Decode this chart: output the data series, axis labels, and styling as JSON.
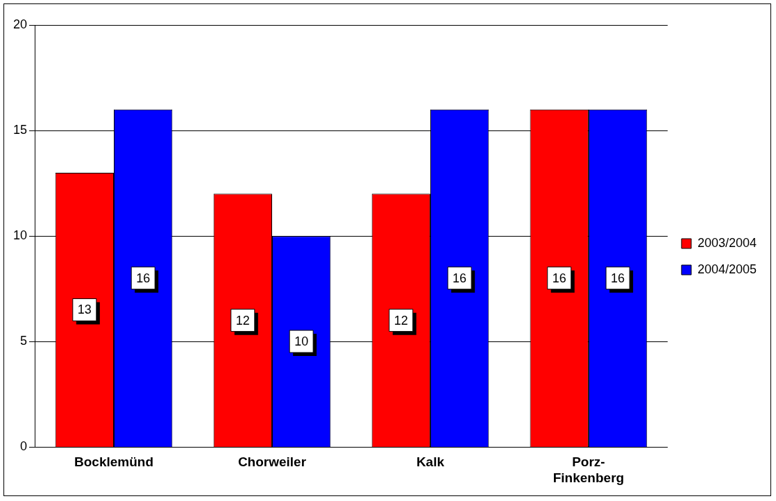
{
  "chart_data": {
    "type": "bar",
    "categories": [
      "Bocklemünd",
      "Chorweiler",
      "Kalk",
      "Porz-Finkenberg"
    ],
    "series": [
      {
        "name": "2003/2004",
        "color": "#ff0000",
        "values": [
          13,
          12,
          12,
          16
        ]
      },
      {
        "name": "2004/2005",
        "color": "#0000ff",
        "values": [
          16,
          10,
          16,
          16
        ]
      }
    ],
    "ylim": [
      0,
      20
    ],
    "yticks": [
      0,
      5,
      10,
      15,
      20
    ],
    "grid": "y",
    "legend": "right",
    "data_labels": true
  }
}
